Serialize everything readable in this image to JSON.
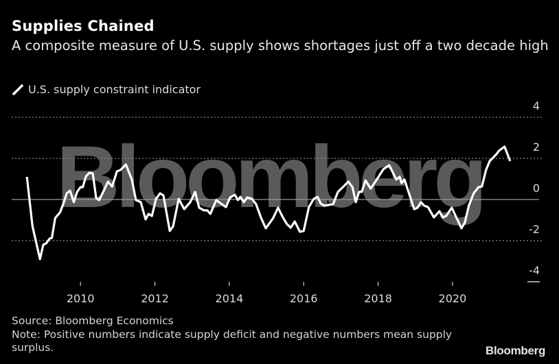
{
  "header": {
    "title": "Supplies Chained",
    "subtitle": "A composite measure of U.S. supply shows shortages just off a two decade high"
  },
  "footer": {
    "source": "Source: Bloomberg Economics",
    "note": "Note: Positive numbers indicate supply deficit and negative numbers mean supply surplus.",
    "logo": "Bloomberg"
  },
  "watermark": "Bloomberg",
  "colors": {
    "background": "#000000",
    "line": "#ffffff",
    "grid": "#8a8a8a",
    "watermark": "#5a5a5a"
  },
  "chart_data": {
    "type": "line",
    "title": "Supplies Chained",
    "subtitle": "A composite measure of U.S. supply shows shortages just off a two decade high",
    "xlabel": "",
    "ylabel": "",
    "xlim": [
      2008.15,
      2022.42
    ],
    "ylim": [
      -4,
      4
    ],
    "x_ticks": [
      2010,
      2012,
      2014,
      2016,
      2018,
      2020
    ],
    "x_tick_labels": [
      "2010",
      "2012",
      "2014",
      "2016",
      "2018",
      "2020"
    ],
    "y_ticks": [
      4,
      2,
      0,
      -2,
      -4
    ],
    "y_tick_labels": [
      "4",
      "2",
      "0",
      "-2",
      "-4"
    ],
    "y_axis_side": "right",
    "grid": true,
    "legend": {
      "placement": "top-left",
      "entries": [
        "U.S. supply constraint indicator"
      ]
    },
    "series": [
      {
        "name": "U.S. supply constraint indicator",
        "color": "#ffffff",
        "points": [
          [
            2008.56,
            1.1
          ],
          [
            2008.71,
            -1.3
          ],
          [
            2008.91,
            -2.9
          ],
          [
            2009.0,
            -2.2
          ],
          [
            2009.08,
            -2.13
          ],
          [
            2009.17,
            -1.9
          ],
          [
            2009.23,
            -1.87
          ],
          [
            2009.32,
            -0.9
          ],
          [
            2009.45,
            -0.63
          ],
          [
            2009.54,
            -0.2
          ],
          [
            2009.63,
            0.3
          ],
          [
            2009.72,
            0.43
          ],
          [
            2009.82,
            -0.13
          ],
          [
            2009.91,
            0.37
          ],
          [
            2010.0,
            0.6
          ],
          [
            2010.06,
            0.6
          ],
          [
            2010.15,
            1.13
          ],
          [
            2010.24,
            1.3
          ],
          [
            2010.33,
            1.27
          ],
          [
            2010.42,
            0.07
          ],
          [
            2010.5,
            -0.03
          ],
          [
            2010.61,
            0.37
          ],
          [
            2010.74,
            0.87
          ],
          [
            2010.85,
            0.63
          ],
          [
            2010.98,
            1.37
          ],
          [
            2011.07,
            1.43
          ],
          [
            2011.22,
            1.7
          ],
          [
            2011.38,
            0.97
          ],
          [
            2011.49,
            -0.03
          ],
          [
            2011.62,
            -0.13
          ],
          [
            2011.75,
            -0.97
          ],
          [
            2011.83,
            -0.7
          ],
          [
            2011.92,
            -0.8
          ],
          [
            2012.03,
            0.03
          ],
          [
            2012.14,
            0.3
          ],
          [
            2012.23,
            0.2
          ],
          [
            2012.4,
            -1.53
          ],
          [
            2012.49,
            -1.3
          ],
          [
            2012.64,
            0.03
          ],
          [
            2012.79,
            -0.47
          ],
          [
            2012.95,
            -0.13
          ],
          [
            2013.08,
            0.37
          ],
          [
            2013.19,
            -0.4
          ],
          [
            2013.32,
            -0.53
          ],
          [
            2013.41,
            -0.53
          ],
          [
            2013.49,
            -0.7
          ],
          [
            2013.65,
            -0.03
          ],
          [
            2013.8,
            -0.23
          ],
          [
            2013.91,
            -0.37
          ],
          [
            2014.02,
            0.1
          ],
          [
            2014.15,
            0.23
          ],
          [
            2014.23,
            -0.03
          ],
          [
            2014.3,
            0.13
          ],
          [
            2014.39,
            -0.13
          ],
          [
            2014.48,
            0.1
          ],
          [
            2014.61,
            0.03
          ],
          [
            2014.72,
            -0.23
          ],
          [
            2014.85,
            -0.87
          ],
          [
            2014.98,
            -1.4
          ],
          [
            2015.09,
            -1.13
          ],
          [
            2015.18,
            -0.9
          ],
          [
            2015.31,
            -0.4
          ],
          [
            2015.44,
            -0.87
          ],
          [
            2015.55,
            -1.2
          ],
          [
            2015.65,
            -1.37
          ],
          [
            2015.76,
            -1.07
          ],
          [
            2015.9,
            -1.57
          ],
          [
            2016.0,
            -1.53
          ],
          [
            2016.14,
            -0.37
          ],
          [
            2016.27,
            0.03
          ],
          [
            2016.37,
            0.13
          ],
          [
            2016.46,
            -0.2
          ],
          [
            2016.55,
            -0.3
          ],
          [
            2016.79,
            -0.23
          ],
          [
            2016.92,
            0.37
          ],
          [
            2017.07,
            0.63
          ],
          [
            2017.2,
            0.87
          ],
          [
            2017.31,
            0.6
          ],
          [
            2017.4,
            -0.13
          ],
          [
            2017.49,
            0.37
          ],
          [
            2017.56,
            0.37
          ],
          [
            2017.66,
            0.93
          ],
          [
            2017.8,
            0.53
          ],
          [
            2017.95,
            0.93
          ],
          [
            2018.14,
            1.47
          ],
          [
            2018.3,
            1.67
          ],
          [
            2018.49,
            0.97
          ],
          [
            2018.58,
            1.1
          ],
          [
            2018.63,
            0.8
          ],
          [
            2018.71,
            0.97
          ],
          [
            2018.86,
            0.13
          ],
          [
            2018.97,
            -0.47
          ],
          [
            2019.06,
            -0.4
          ],
          [
            2019.15,
            -0.13
          ],
          [
            2019.24,
            -0.3
          ],
          [
            2019.34,
            -0.37
          ],
          [
            2019.5,
            -0.87
          ],
          [
            2019.65,
            -0.57
          ],
          [
            2019.74,
            -0.87
          ],
          [
            2019.83,
            -0.8
          ],
          [
            2019.98,
            -0.4
          ],
          [
            2020.11,
            -0.9
          ],
          [
            2020.24,
            -1.4
          ],
          [
            2020.33,
            -1.13
          ],
          [
            2020.44,
            -0.3
          ],
          [
            2020.57,
            0.3
          ],
          [
            2020.7,
            0.6
          ],
          [
            2020.79,
            0.63
          ],
          [
            2020.9,
            1.43
          ],
          [
            2021.0,
            1.87
          ],
          [
            2021.09,
            2.03
          ],
          [
            2021.18,
            2.2
          ],
          [
            2021.25,
            2.37
          ],
          [
            2021.4,
            2.57
          ],
          [
            2021.55,
            1.87
          ]
        ]
      }
    ],
    "source": "Source: Bloomberg Economics",
    "note": "Note: Positive numbers indicate supply deficit and negative numbers mean supply surplus."
  }
}
